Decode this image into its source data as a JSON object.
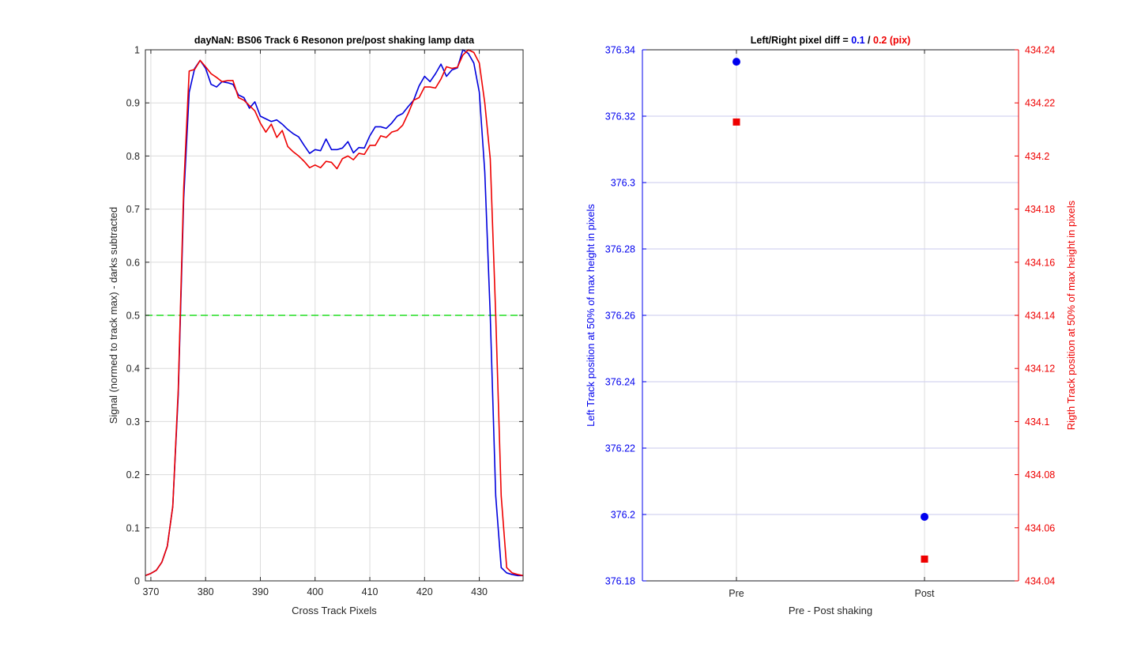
{
  "chart_data": [
    {
      "type": "line",
      "title": "dayNaN: BS06  Track 6 Resonon pre/post shaking lamp data",
      "xlabel": "Cross Track Pixels",
      "ylabel": "Signal (normed to track max) - darks subtracted",
      "xlim": [
        369,
        438
      ],
      "ylim": [
        0,
        1
      ],
      "xticks": [
        370,
        380,
        390,
        400,
        410,
        420,
        430
      ],
      "yticks": [
        0,
        0.1,
        0.2,
        0.3,
        0.4,
        0.5,
        0.6,
        0.7,
        0.8,
        0.9,
        1
      ],
      "grid": true,
      "threshold": {
        "y": 0.5,
        "color": "#22dd22",
        "style": "dashed"
      },
      "series": [
        {
          "color": "#0000dd",
          "x": [
            369,
            370,
            371,
            372,
            373,
            374,
            375,
            376,
            377,
            378,
            379,
            380,
            381,
            382,
            383,
            384,
            385,
            386,
            387,
            388,
            389,
            390,
            391,
            392,
            393,
            394,
            395,
            396,
            397,
            398,
            399,
            400,
            401,
            402,
            403,
            404,
            405,
            406,
            407,
            408,
            409,
            410,
            411,
            412,
            413,
            414,
            415,
            416,
            417,
            418,
            419,
            420,
            421,
            422,
            423,
            424,
            425,
            426,
            427,
            428,
            429,
            430,
            431,
            432,
            433,
            434,
            435,
            436,
            437,
            438
          ],
          "values": [
            0.01,
            0.014,
            0.02,
            0.035,
            0.065,
            0.14,
            0.35,
            0.72,
            0.92,
            0.965,
            0.98,
            0.965,
            0.935,
            0.93,
            0.94,
            0.938,
            0.935,
            0.915,
            0.91,
            0.89,
            0.902,
            0.875,
            0.87,
            0.865,
            0.868,
            0.86,
            0.85,
            0.842,
            0.836,
            0.82,
            0.805,
            0.812,
            0.81,
            0.832,
            0.812,
            0.812,
            0.815,
            0.827,
            0.806,
            0.816,
            0.815,
            0.838,
            0.855,
            0.855,
            0.852,
            0.862,
            0.875,
            0.88,
            0.893,
            0.905,
            0.932,
            0.95,
            0.94,
            0.955,
            0.973,
            0.95,
            0.962,
            0.966,
            1.0,
            0.993,
            0.975,
            0.92,
            0.77,
            0.5,
            0.16,
            0.025,
            0.015,
            0.012,
            0.01,
            0.01
          ]
        },
        {
          "color": "#ee0000",
          "x": [
            369,
            370,
            371,
            372,
            373,
            374,
            375,
            376,
            377,
            378,
            379,
            380,
            381,
            382,
            383,
            384,
            385,
            386,
            387,
            388,
            389,
            390,
            391,
            392,
            393,
            394,
            395,
            396,
            397,
            398,
            399,
            400,
            401,
            402,
            403,
            404,
            405,
            406,
            407,
            408,
            409,
            410,
            411,
            412,
            413,
            414,
            415,
            416,
            417,
            418,
            419,
            420,
            421,
            422,
            423,
            424,
            425,
            426,
            427,
            428,
            429,
            430,
            431,
            432,
            433,
            434,
            435,
            436,
            437,
            438
          ],
          "values": [
            0.01,
            0.014,
            0.02,
            0.035,
            0.065,
            0.14,
            0.36,
            0.74,
            0.96,
            0.963,
            0.98,
            0.968,
            0.955,
            0.948,
            0.94,
            0.942,
            0.942,
            0.91,
            0.905,
            0.895,
            0.885,
            0.862,
            0.845,
            0.86,
            0.835,
            0.848,
            0.818,
            0.808,
            0.8,
            0.79,
            0.778,
            0.783,
            0.778,
            0.79,
            0.788,
            0.776,
            0.795,
            0.8,
            0.793,
            0.805,
            0.803,
            0.82,
            0.82,
            0.838,
            0.835,
            0.845,
            0.848,
            0.858,
            0.88,
            0.905,
            0.91,
            0.93,
            0.93,
            0.928,
            0.945,
            0.968,
            0.965,
            0.967,
            0.99,
            1.0,
            0.995,
            0.975,
            0.9,
            0.795,
            0.5,
            0.16,
            0.025,
            0.015,
            0.012,
            0.01
          ]
        }
      ]
    },
    {
      "type": "scatter",
      "title_prefix": "Left/Right pixel diff = ",
      "title_left_value": "0.1",
      "title_sep": " / ",
      "title_right_value": "0.2 (pix)",
      "xlabel": "Pre - Post shaking",
      "ylabel_left": "Left Track position at 50% of max height in pixels",
      "ylabel_right": "Rigth Track position at 50% of max height in pixels",
      "categories": [
        "Pre",
        "Post"
      ],
      "xlim": [
        0.5,
        2.5
      ],
      "ylim_left": [
        376.18,
        376.34
      ],
      "ylim_right": [
        434.04,
        434.24
      ],
      "yticks_left": [
        "376.18",
        "376.2",
        "376.22",
        "376.24",
        "376.26",
        "376.28",
        "376.3",
        "376.32",
        "376.34"
      ],
      "yticks_right": [
        "434.04",
        "434.06",
        "434.08",
        "434.1",
        "434.12",
        "434.14",
        "434.16",
        "434.18",
        "434.2",
        "434.22",
        "434.24"
      ],
      "grid": true,
      "series": [
        {
          "axis": "left",
          "color": "#0000ee",
          "marker": "circle",
          "values": [
            376.3364,
            376.1993
          ]
        },
        {
          "axis": "right",
          "color": "#ee0000",
          "marker": "square",
          "values": [
            434.2128,
            434.0482
          ]
        }
      ]
    }
  ]
}
